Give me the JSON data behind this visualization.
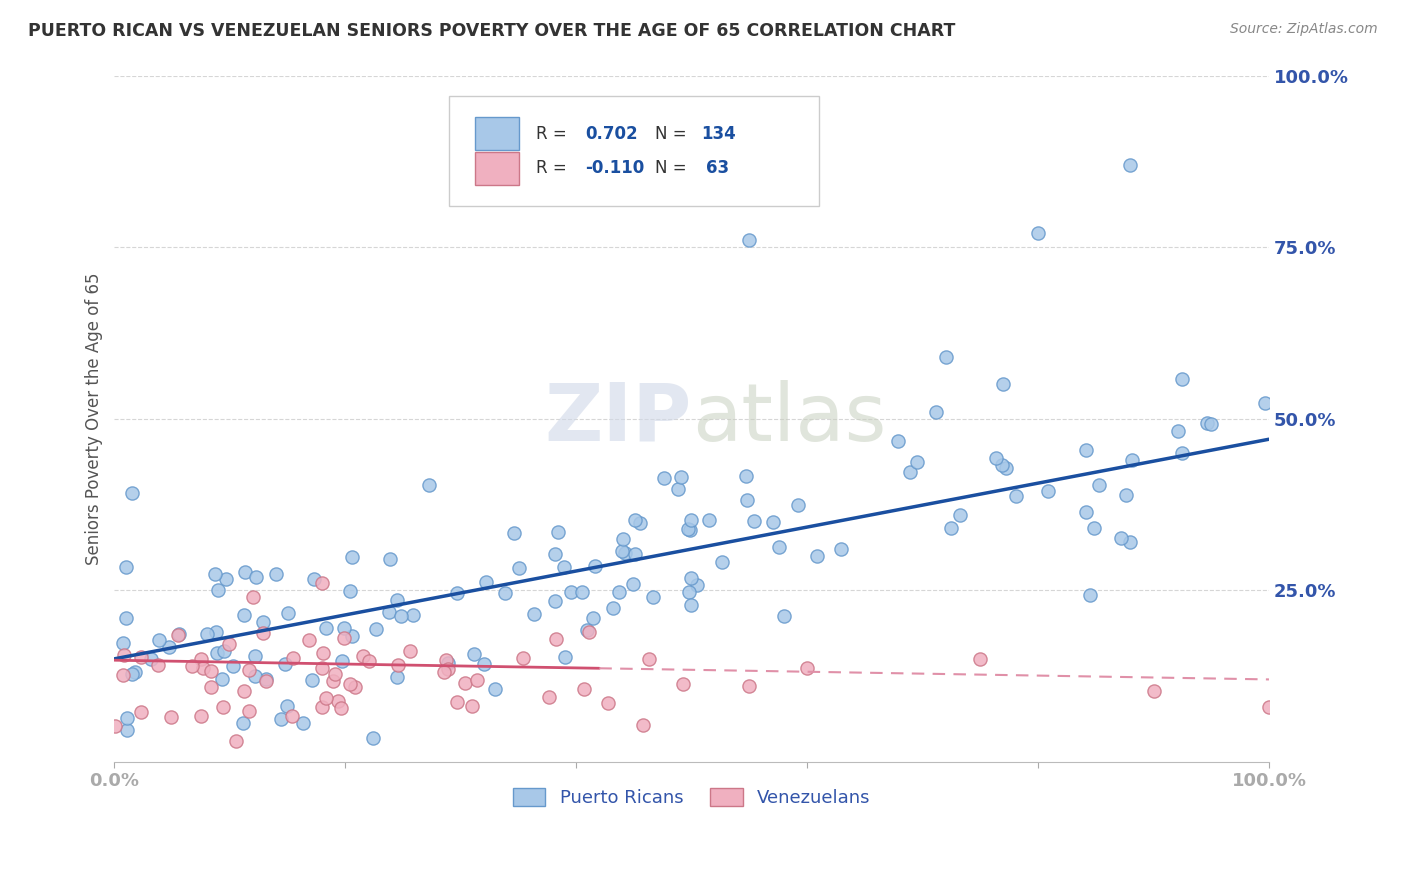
{
  "title": "PUERTO RICAN VS VENEZUELAN SENIORS POVERTY OVER THE AGE OF 65 CORRELATION CHART",
  "source": "Source: ZipAtlas.com",
  "ylabel": "Seniors Poverty Over the Age of 65",
  "pr_color_fill": "#a8c8e8",
  "pr_color_edge": "#6699cc",
  "ven_color_fill": "#f0b0c0",
  "ven_color_edge": "#cc7788",
  "pr_line_color": "#1a4fa0",
  "ven_line_solid_color": "#d05070",
  "ven_line_dash_color": "#e090a8",
  "watermark": "ZIPatlas",
  "axis_label_color": "#3355aa",
  "tick_color": "#aaaaaa",
  "grid_color": "#cccccc",
  "title_color": "#333333",
  "source_color": "#888888"
}
